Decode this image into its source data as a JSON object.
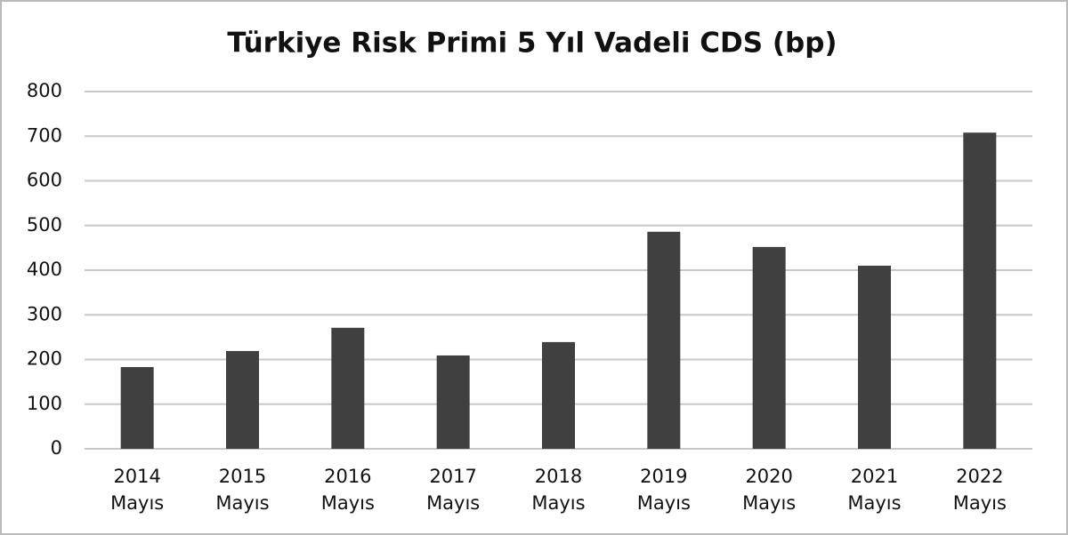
{
  "chart_data": {
    "type": "bar",
    "title": "Türkiye Risk Primi 5 Yıl Vadeli CDS (bp)",
    "categories": [
      [
        "2014",
        "Mayıs"
      ],
      [
        "2015",
        "Mayıs"
      ],
      [
        "2016",
        "Mayıs"
      ],
      [
        "2017",
        "Mayıs"
      ],
      [
        "2018",
        "Mayıs"
      ],
      [
        "2019",
        "Mayıs"
      ],
      [
        "2020",
        "Mayıs"
      ],
      [
        "2021",
        "Mayıs"
      ],
      [
        "2022",
        "Mayıs"
      ]
    ],
    "values": [
      183,
      219,
      271,
      209,
      239,
      486,
      452,
      410,
      708
    ],
    "color": "#404040",
    "ylim": [
      0,
      800
    ],
    "yticks": [
      0,
      100,
      200,
      300,
      400,
      500,
      600,
      700,
      800
    ],
    "grid": true
  }
}
